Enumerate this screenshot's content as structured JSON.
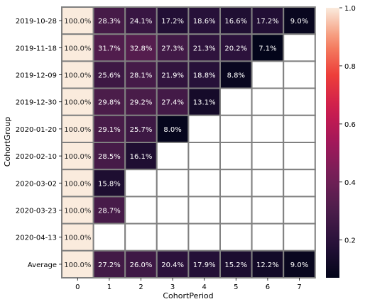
{
  "chart_data": {
    "type": "heatmap",
    "xlabel": "CohortPeriod",
    "ylabel": "CohortGroup",
    "x_categories": [
      "0",
      "1",
      "2",
      "3",
      "4",
      "5",
      "6",
      "7"
    ],
    "y_categories": [
      "2019-10-28",
      "2019-11-18",
      "2019-12-09",
      "2019-12-30",
      "2020-01-20",
      "2020-02-10",
      "2020-03-02",
      "2020-03-23",
      "2020-04-13",
      "Average"
    ],
    "values": [
      [
        1.0,
        0.283,
        0.241,
        0.172,
        0.186,
        0.166,
        0.172,
        0.09
      ],
      [
        1.0,
        0.317,
        0.328,
        0.273,
        0.213,
        0.202,
        0.071,
        null
      ],
      [
        1.0,
        0.256,
        0.281,
        0.219,
        0.188,
        0.088,
        null,
        null
      ],
      [
        1.0,
        0.298,
        0.292,
        0.274,
        0.131,
        null,
        null,
        null
      ],
      [
        1.0,
        0.291,
        0.257,
        0.08,
        null,
        null,
        null,
        null
      ],
      [
        1.0,
        0.285,
        0.161,
        null,
        null,
        null,
        null,
        null
      ],
      [
        1.0,
        0.158,
        null,
        null,
        null,
        null,
        null,
        null
      ],
      [
        1.0,
        0.287,
        null,
        null,
        null,
        null,
        null,
        null
      ],
      [
        1.0,
        null,
        null,
        null,
        null,
        null,
        null,
        null
      ],
      [
        1.0,
        0.272,
        0.26,
        0.204,
        0.179,
        0.152,
        0.122,
        0.09
      ]
    ],
    "annotations": [
      [
        "100.0%",
        "28.3%",
        "24.1%",
        "17.2%",
        "18.6%",
        "16.6%",
        "17.2%",
        "9.0%"
      ],
      [
        "100.0%",
        "31.7%",
        "32.8%",
        "27.3%",
        "21.3%",
        "20.2%",
        "7.1%",
        ""
      ],
      [
        "100.0%",
        "25.6%",
        "28.1%",
        "21.9%",
        "18.8%",
        "8.8%",
        "",
        ""
      ],
      [
        "100.0%",
        "29.8%",
        "29.2%",
        "27.4%",
        "13.1%",
        "",
        "",
        ""
      ],
      [
        "100.0%",
        "29.1%",
        "25.7%",
        "8.0%",
        "",
        "",
        "",
        ""
      ],
      [
        "100.0%",
        "28.5%",
        "16.1%",
        "",
        "",
        "",
        "",
        ""
      ],
      [
        "100.0%",
        "15.8%",
        "",
        "",
        "",
        "",
        "",
        ""
      ],
      [
        "100.0%",
        "28.7%",
        "",
        "",
        "",
        "",
        "",
        ""
      ],
      [
        "100.0%",
        "",
        "",
        "",
        "",
        "",
        "",
        ""
      ],
      [
        "100.0%",
        "27.2%",
        "26.0%",
        "20.4%",
        "17.9%",
        "15.2%",
        "12.2%",
        "9.0%"
      ]
    ],
    "colorbar": {
      "vmin": 0.07,
      "vmax": 1.0,
      "ticks": [
        0.2,
        0.4,
        0.6,
        0.8,
        1.0
      ],
      "tick_labels": [
        "0.2",
        "0.4",
        "0.6",
        "0.8",
        "1.0"
      ],
      "colormap": "rocket"
    },
    "cell_border_color": "#808080",
    "grid": false,
    "legend": "colorbar-right"
  }
}
